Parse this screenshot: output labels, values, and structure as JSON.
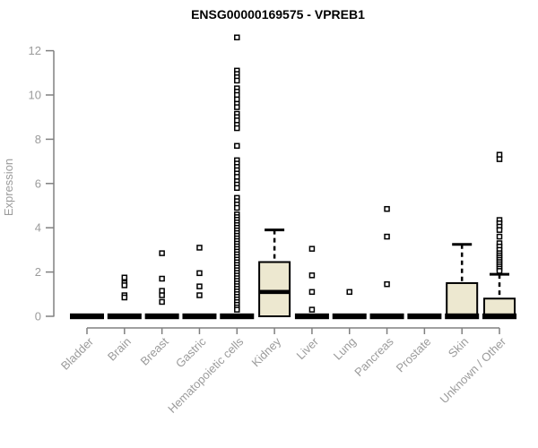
{
  "chart_data": {
    "type": "boxplot",
    "title": "ENSG00000169575 - VPREB1",
    "ylabel": "Expression",
    "xlabel": "",
    "ylim": [
      0,
      12.8
    ],
    "yticks": [
      0,
      2,
      4,
      6,
      8,
      10,
      12
    ],
    "grid": false,
    "legend": "none",
    "categories": [
      "Bladder",
      "Brain",
      "Breast",
      "Gastric",
      "Hematopoietic cells",
      "Kidney",
      "Liver",
      "Lung",
      "Pancreas",
      "Prostate",
      "Skin",
      "Unknown / Other"
    ],
    "series": [
      {
        "category": "Bladder",
        "q1": 0,
        "median": 0,
        "q3": 0,
        "whisker_low": 0,
        "whisker_high": 0,
        "outliers": []
      },
      {
        "category": "Brain",
        "q1": 0,
        "median": 0,
        "q3": 0,
        "whisker_low": 0,
        "whisker_high": 0,
        "outliers": [
          1.75,
          1.5,
          1.4,
          0.95,
          0.85
        ]
      },
      {
        "category": "Breast",
        "q1": 0,
        "median": 0,
        "q3": 0,
        "whisker_low": 0,
        "whisker_high": 0,
        "outliers": [
          2.85,
          1.7,
          1.15,
          0.95,
          0.65
        ]
      },
      {
        "category": "Gastric",
        "q1": 0,
        "median": 0,
        "q3": 0,
        "whisker_low": 0,
        "whisker_high": 0,
        "outliers": [
          3.1,
          1.95,
          1.35,
          0.95
        ]
      },
      {
        "category": "Hematopoietic cells",
        "q1": 0,
        "median": 0,
        "q3": 0,
        "whisker_low": 0,
        "whisker_high": 0,
        "outliers": [
          12.6,
          11.1,
          10.95,
          10.8,
          10.65,
          10.3,
          10.15,
          10.0,
          9.8,
          9.6,
          9.45,
          9.15,
          9.0,
          8.85,
          8.65,
          8.5,
          7.7,
          7.05,
          6.9,
          6.75,
          6.6,
          6.45,
          6.3,
          6.1,
          5.95,
          5.8,
          5.35,
          5.2,
          5.05,
          4.9,
          4.6,
          4.48,
          4.36,
          4.24,
          4.12,
          4.0,
          3.88,
          3.76,
          3.64,
          3.52,
          3.4,
          3.28,
          3.16,
          3.04,
          2.92,
          2.8,
          2.68,
          2.56,
          2.44,
          2.32,
          2.2,
          2.08,
          1.96,
          1.84,
          1.72,
          1.6,
          1.48,
          1.36,
          1.24,
          1.12,
          1.0,
          0.88,
          0.76,
          0.64,
          0.52,
          0.4,
          0.3
        ]
      },
      {
        "category": "Kidney",
        "q1": 0,
        "median": 1.1,
        "q3": 2.45,
        "whisker_low": 0,
        "whisker_high": 3.9,
        "outliers": []
      },
      {
        "category": "Liver",
        "q1": 0,
        "median": 0,
        "q3": 0,
        "whisker_low": 0,
        "whisker_high": 0,
        "outliers": [
          3.05,
          1.85,
          1.1,
          0.3
        ]
      },
      {
        "category": "Lung",
        "q1": 0,
        "median": 0,
        "q3": 0,
        "whisker_low": 0,
        "whisker_high": 0,
        "outliers": [
          1.1
        ]
      },
      {
        "category": "Pancreas",
        "q1": 0,
        "median": 0,
        "q3": 0,
        "whisker_low": 0,
        "whisker_high": 0,
        "outliers": [
          4.85,
          3.6,
          1.45
        ]
      },
      {
        "category": "Prostate",
        "q1": 0,
        "median": 0,
        "q3": 0,
        "whisker_low": 0,
        "whisker_high": 0,
        "outliers": []
      },
      {
        "category": "Skin",
        "q1": 0,
        "median": 0,
        "q3": 1.5,
        "whisker_low": 0,
        "whisker_high": 3.25,
        "outliers": []
      },
      {
        "category": "Unknown / Other",
        "q1": 0,
        "median": 0,
        "q3": 0.8,
        "whisker_low": 0,
        "whisker_high": 1.9,
        "outliers": [
          7.3,
          7.1,
          4.35,
          4.2,
          4.05,
          3.9,
          3.6,
          3.3,
          3.15,
          3.0,
          2.85,
          2.75,
          2.65,
          2.55,
          2.45,
          2.35,
          2.25,
          2.15,
          2.05
        ]
      }
    ],
    "colors": {
      "background": "#ffffff",
      "box_fill": "#ede8d0",
      "box_stroke": "#000000",
      "median": "#000000",
      "whisker": "#000000",
      "outlier_stroke": "#000000",
      "outlier_fill": "#ffffff",
      "axis": "#808080",
      "tick_label": "#9b9b9b",
      "title": "#000000"
    }
  }
}
